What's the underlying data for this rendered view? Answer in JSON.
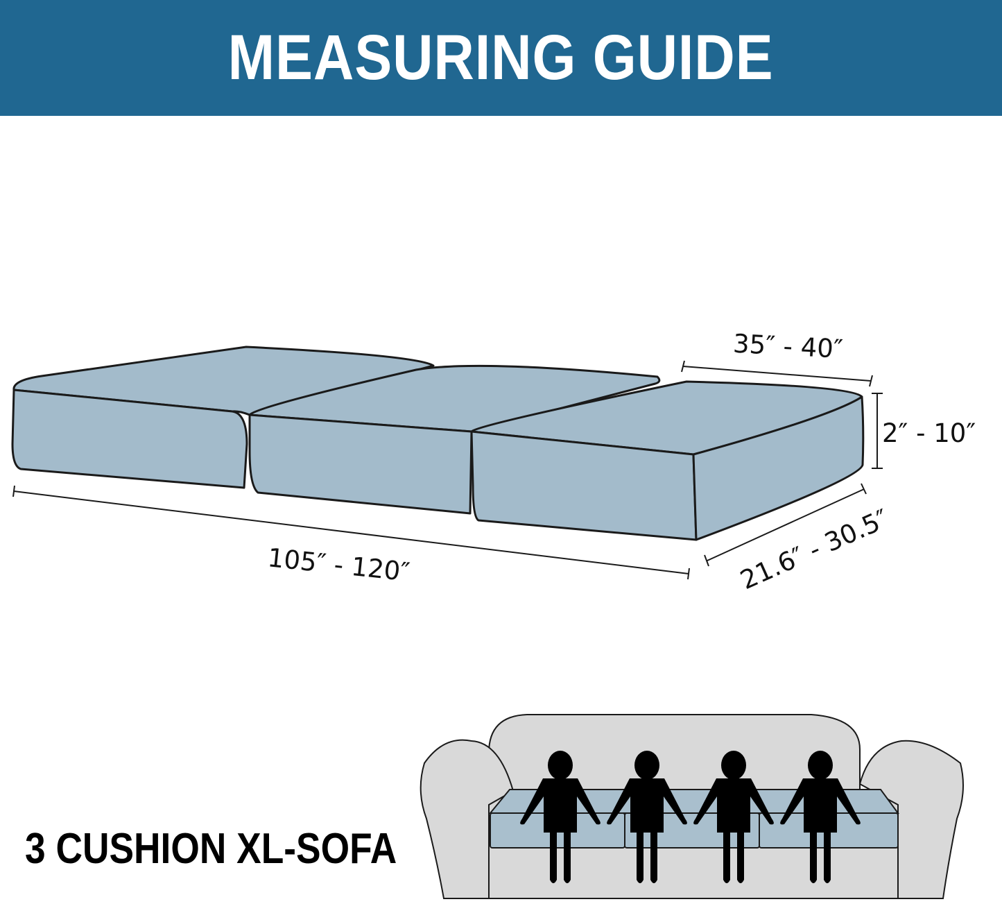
{
  "header": {
    "title": "MEASURING GUIDE"
  },
  "dimensions": {
    "cushion_length": "35″ - 40″",
    "cushion_height": "2″ - 10″",
    "cushion_depth": "21.6″ - 30.5″",
    "total_length": "105″ - 120″"
  },
  "sofa": {
    "label": "3 CUSHION XL-SOFA",
    "cushion_count": 3,
    "seated_people": 4
  },
  "colors": {
    "banner": "#206791",
    "cushion": "#a3bbcb",
    "sofa": "#d9d9d9",
    "outline": "#1a1a1a"
  }
}
